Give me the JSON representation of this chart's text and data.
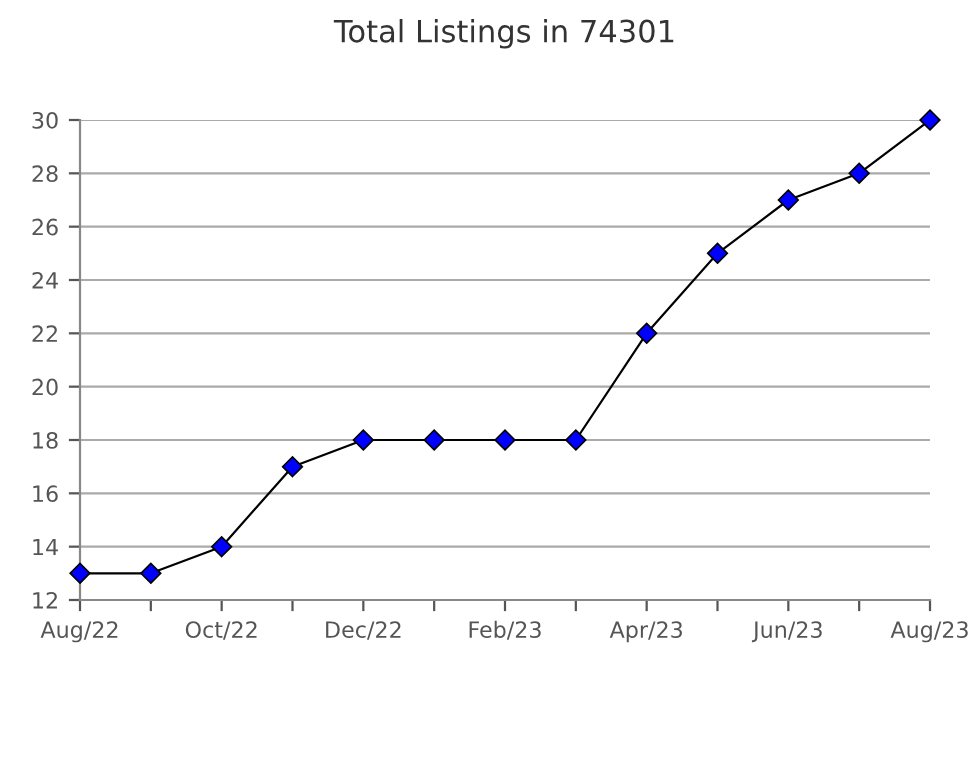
{
  "chart_data": {
    "type": "line",
    "title": "Total Listings in 74301",
    "categories": [
      "Aug/22",
      null,
      "Oct/22",
      null,
      "Dec/22",
      null,
      "Feb/23",
      null,
      "Apr/23",
      null,
      "Jun/23",
      null,
      "Aug/23"
    ],
    "series": [
      {
        "color": "#0000ff",
        "values": [
          13,
          13,
          14,
          17,
          18,
          18,
          18,
          18,
          22,
          25,
          27,
          28,
          30
        ]
      }
    ],
    "ylim": [
      12,
      30
    ],
    "yticks": [
      12,
      14,
      16,
      18,
      20,
      22,
      24,
      26,
      28,
      30
    ],
    "grid": "y",
    "marker": "diamond",
    "line_style": "solid"
  }
}
